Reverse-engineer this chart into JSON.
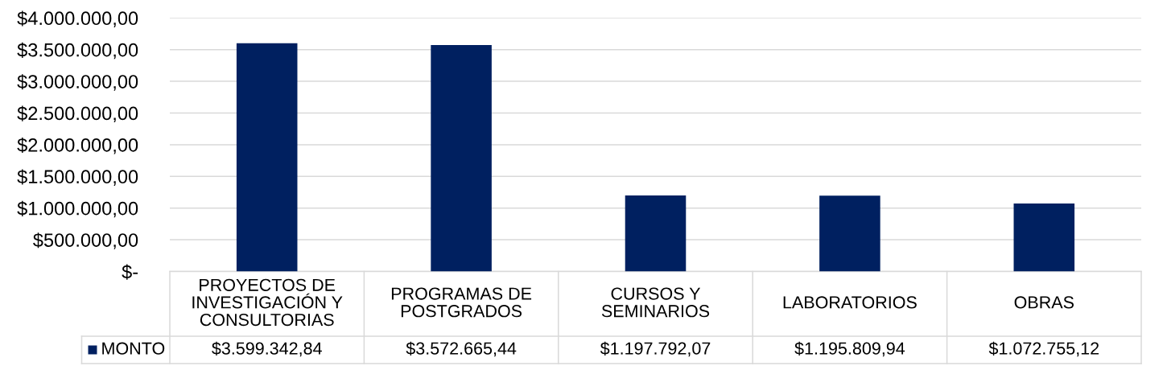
{
  "chart_data": {
    "type": "bar",
    "categories": [
      "PROYECTOS DE INVESTIGACIÓN Y CONSULTORIAS",
      "PROGRAMAS DE POSTGRADOS",
      "CURSOS Y SEMINARIOS",
      "LABORATORIOS",
      "OBRAS"
    ],
    "series": [
      {
        "name": "MONTO",
        "color": "#002060",
        "values": [
          3599342.84,
          3572665.44,
          1197792.07,
          1195809.94,
          1072755.12
        ],
        "value_labels": [
          "$3.599.342,84",
          "$3.572.665,44",
          "$1.197.792,07",
          "$1.195.809,94",
          "$1.072.755,12"
        ]
      }
    ],
    "ylim": [
      0,
      4000000
    ],
    "yticks": [
      {
        "value": 0,
        "label": "$-"
      },
      {
        "value": 500000,
        "label": "$500.000,00"
      },
      {
        "value": 1000000,
        "label": "$1.000.000,00"
      },
      {
        "value": 1500000,
        "label": "$1.500.000,00"
      },
      {
        "value": 2000000,
        "label": "$2.000.000,00"
      },
      {
        "value": 2500000,
        "label": "$2.500.000,00"
      },
      {
        "value": 3000000,
        "label": "$3.000.000,00"
      },
      {
        "value": 3500000,
        "label": "$3.500.000,00"
      },
      {
        "value": 4000000,
        "label": "$4.000.000,00"
      }
    ],
    "grid": "y",
    "legend": "bottom"
  }
}
